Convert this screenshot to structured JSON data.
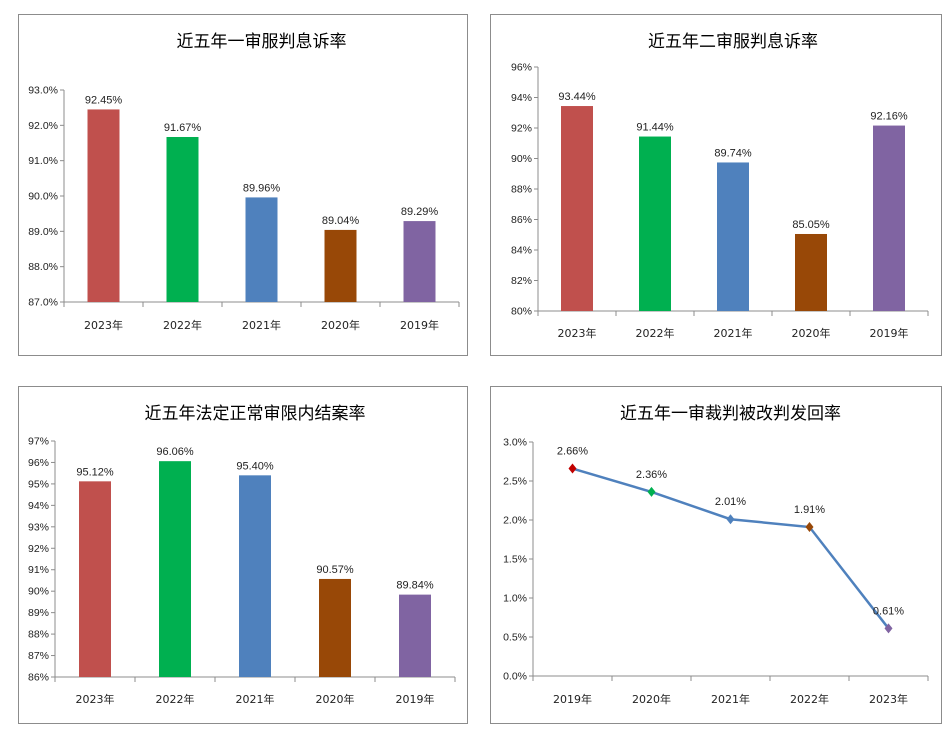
{
  "colors": {
    "red": "#c0504d",
    "green": "#00b050",
    "blue": "#4f81bd",
    "brown": "#984807",
    "purple": "#8064a2",
    "line": "#4f81bd"
  },
  "chart_data": [
    {
      "type": "bar",
      "title": "近五年一审服判息诉率",
      "categories": [
        "2023年",
        "2022年",
        "2021年",
        "2020年",
        "2019年"
      ],
      "values": [
        92.45,
        91.67,
        89.96,
        89.04,
        89.29
      ],
      "labels": [
        "92.45%",
        "91.67%",
        "89.96%",
        "89.04%",
        "89.29%"
      ],
      "bar_colors": [
        "#c0504d",
        "#00b050",
        "#4f81bd",
        "#984807",
        "#8064a2"
      ],
      "ylim": [
        87,
        93
      ],
      "yticks": [
        {
          "v": 87,
          "t": "87.0%"
        },
        {
          "v": 88,
          "t": "88.0%"
        },
        {
          "v": 89,
          "t": "89.0%"
        },
        {
          "v": 90,
          "t": "90.0%"
        },
        {
          "v": 91,
          "t": "91.0%"
        },
        {
          "v": 92,
          "t": "92.0%"
        },
        {
          "v": 93,
          "t": "93.0%"
        }
      ],
      "grid": false,
      "legend": "none"
    },
    {
      "type": "bar",
      "title": "近五年二审服判息诉率",
      "categories": [
        "2023年",
        "2022年",
        "2021年",
        "2020年",
        "2019年"
      ],
      "values": [
        93.44,
        91.44,
        89.74,
        85.05,
        92.16
      ],
      "labels": [
        "93.44%",
        "91.44%",
        "89.74%",
        "85.05%",
        "92.16%"
      ],
      "bar_colors": [
        "#c0504d",
        "#00b050",
        "#4f81bd",
        "#984807",
        "#8064a2"
      ],
      "ylim": [
        80,
        96
      ],
      "yticks": [
        {
          "v": 80,
          "t": "80%"
        },
        {
          "v": 82,
          "t": "82%"
        },
        {
          "v": 84,
          "t": "84%"
        },
        {
          "v": 86,
          "t": "86%"
        },
        {
          "v": 88,
          "t": "88%"
        },
        {
          "v": 90,
          "t": "90%"
        },
        {
          "v": 92,
          "t": "92%"
        },
        {
          "v": 94,
          "t": "94%"
        },
        {
          "v": 96,
          "t": "96%"
        }
      ],
      "grid": false,
      "legend": "none"
    },
    {
      "type": "bar",
      "title": "近五年法定正常审限内结案率",
      "categories": [
        "2023年",
        "2022年",
        "2021年",
        "2020年",
        "2019年"
      ],
      "values": [
        95.12,
        96.06,
        95.4,
        90.57,
        89.84
      ],
      "labels": [
        "95.12%",
        "96.06%",
        "95.40%",
        "90.57%",
        "89.84%"
      ],
      "bar_colors": [
        "#c0504d",
        "#00b050",
        "#4f81bd",
        "#984807",
        "#8064a2"
      ],
      "ylim": [
        86,
        97
      ],
      "yticks": [
        {
          "v": 86,
          "t": "86%"
        },
        {
          "v": 87,
          "t": "87%"
        },
        {
          "v": 88,
          "t": "88%"
        },
        {
          "v": 89,
          "t": "89%"
        },
        {
          "v": 90,
          "t": "90%"
        },
        {
          "v": 91,
          "t": "91%"
        },
        {
          "v": 92,
          "t": "92%"
        },
        {
          "v": 93,
          "t": "93%"
        },
        {
          "v": 94,
          "t": "94%"
        },
        {
          "v": 95,
          "t": "95%"
        },
        {
          "v": 96,
          "t": "96%"
        },
        {
          "v": 97,
          "t": "97%"
        }
      ],
      "grid": false,
      "legend": "none"
    },
    {
      "type": "line",
      "title": "近五年一审裁判被改判发回率",
      "categories": [
        "2019年",
        "2020年",
        "2021年",
        "2022年",
        "2023年"
      ],
      "values": [
        2.66,
        2.36,
        2.01,
        1.91,
        0.61
      ],
      "labels": [
        "2.66%",
        "2.36%",
        "2.01%",
        "1.91%",
        "0.61%"
      ],
      "marker_colors": [
        "#c00000",
        "#00b050",
        "#4f81bd",
        "#984807",
        "#8064a2"
      ],
      "line_color": "#4f81bd",
      "ylim": [
        0,
        3
      ],
      "yticks": [
        {
          "v": 0,
          "t": "0.0%"
        },
        {
          "v": 0.5,
          "t": "0.5%"
        },
        {
          "v": 1,
          "t": "1.0%"
        },
        {
          "v": 1.5,
          "t": "1.5%"
        },
        {
          "v": 2,
          "t": "2.0%"
        },
        {
          "v": 2.5,
          "t": "2.5%"
        },
        {
          "v": 3,
          "t": "3.0%"
        }
      ],
      "grid": false,
      "legend": "none"
    }
  ]
}
